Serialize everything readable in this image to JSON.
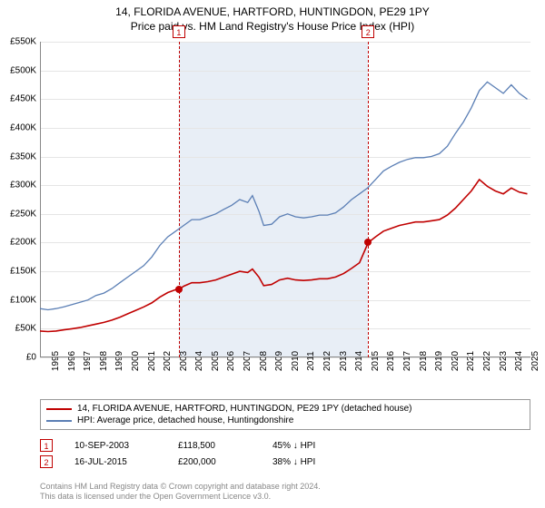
{
  "title": {
    "address": "14, FLORIDA AVENUE, HARTFORD, HUNTINGDON, PE29 1PY",
    "subtitle": "Price paid vs. HM Land Registry's House Price Index (HPI)"
  },
  "chart": {
    "type": "line",
    "background_color": "#ffffff",
    "highlight_color": "#e8eef6",
    "grid_color": "#e5e5e5",
    "axis_color": "#888888",
    "tick_fontsize": 10,
    "x": {
      "min": 1995,
      "max": 2025.7,
      "ticks": [
        1995,
        1996,
        1997,
        1998,
        1999,
        2000,
        2001,
        2002,
        2003,
        2004,
        2005,
        2006,
        2007,
        2008,
        2009,
        2010,
        2011,
        2012,
        2013,
        2014,
        2015,
        2016,
        2017,
        2018,
        2019,
        2020,
        2021,
        2022,
        2023,
        2024,
        2025
      ]
    },
    "y": {
      "min": 0,
      "max": 550000,
      "ticks": [
        0,
        50000,
        100000,
        150000,
        200000,
        250000,
        300000,
        350000,
        400000,
        450000,
        500000,
        550000
      ],
      "tick_labels": [
        "£0",
        "£50K",
        "£100K",
        "£150K",
        "£200K",
        "£250K",
        "£300K",
        "£350K",
        "£400K",
        "£450K",
        "£500K",
        "£550K"
      ]
    },
    "highlight_band": {
      "from": 2003.69,
      "to": 2015.54
    },
    "series": [
      {
        "id": "hpi",
        "label": "HPI: Average price, detached house, Huntingdonshire",
        "color": "#5b7fb5",
        "width": 1.3,
        "points": [
          [
            1995.0,
            85000
          ],
          [
            1995.5,
            83000
          ],
          [
            1996.0,
            85000
          ],
          [
            1996.5,
            88000
          ],
          [
            1997.0,
            92000
          ],
          [
            1997.5,
            96000
          ],
          [
            1998.0,
            100000
          ],
          [
            1998.5,
            108000
          ],
          [
            1999.0,
            112000
          ],
          [
            1999.5,
            120000
          ],
          [
            2000.0,
            130000
          ],
          [
            2000.5,
            140000
          ],
          [
            2001.0,
            150000
          ],
          [
            2001.5,
            160000
          ],
          [
            2002.0,
            175000
          ],
          [
            2002.5,
            195000
          ],
          [
            2003.0,
            210000
          ],
          [
            2003.5,
            220000
          ],
          [
            2004.0,
            230000
          ],
          [
            2004.5,
            240000
          ],
          [
            2005.0,
            240000
          ],
          [
            2005.5,
            245000
          ],
          [
            2006.0,
            250000
          ],
          [
            2006.5,
            258000
          ],
          [
            2007.0,
            265000
          ],
          [
            2007.5,
            275000
          ],
          [
            2008.0,
            270000
          ],
          [
            2008.3,
            282000
          ],
          [
            2008.7,
            255000
          ],
          [
            2009.0,
            230000
          ],
          [
            2009.5,
            232000
          ],
          [
            2010.0,
            245000
          ],
          [
            2010.5,
            250000
          ],
          [
            2011.0,
            245000
          ],
          [
            2011.5,
            243000
          ],
          [
            2012.0,
            245000
          ],
          [
            2012.5,
            248000
          ],
          [
            2013.0,
            248000
          ],
          [
            2013.5,
            252000
          ],
          [
            2014.0,
            262000
          ],
          [
            2014.5,
            275000
          ],
          [
            2015.0,
            285000
          ],
          [
            2015.5,
            295000
          ],
          [
            2016.0,
            310000
          ],
          [
            2016.5,
            325000
          ],
          [
            2017.0,
            333000
          ],
          [
            2017.5,
            340000
          ],
          [
            2018.0,
            345000
          ],
          [
            2018.5,
            348000
          ],
          [
            2019.0,
            348000
          ],
          [
            2019.5,
            350000
          ],
          [
            2020.0,
            355000
          ],
          [
            2020.5,
            368000
          ],
          [
            2021.0,
            390000
          ],
          [
            2021.5,
            410000
          ],
          [
            2022.0,
            435000
          ],
          [
            2022.5,
            465000
          ],
          [
            2023.0,
            480000
          ],
          [
            2023.5,
            470000
          ],
          [
            2024.0,
            460000
          ],
          [
            2024.5,
            475000
          ],
          [
            2025.0,
            460000
          ],
          [
            2025.5,
            450000
          ]
        ]
      },
      {
        "id": "property",
        "label": "14, FLORIDA AVENUE, HARTFORD, HUNTINGDON, PE29 1PY (detached house)",
        "color": "#c00000",
        "width": 1.6,
        "points": [
          [
            1995.0,
            46000
          ],
          [
            1995.5,
            45000
          ],
          [
            1996.0,
            46000
          ],
          [
            1996.5,
            48000
          ],
          [
            1997.0,
            50000
          ],
          [
            1997.5,
            52000
          ],
          [
            1998.0,
            55000
          ],
          [
            1998.5,
            58000
          ],
          [
            1999.0,
            61000
          ],
          [
            1999.5,
            65000
          ],
          [
            2000.0,
            70000
          ],
          [
            2000.5,
            76000
          ],
          [
            2001.0,
            82000
          ],
          [
            2001.5,
            88000
          ],
          [
            2002.0,
            95000
          ],
          [
            2002.5,
            105000
          ],
          [
            2003.0,
            113000
          ],
          [
            2003.5,
            118000
          ],
          [
            2003.69,
            118500
          ],
          [
            2004.0,
            124000
          ],
          [
            2004.5,
            130000
          ],
          [
            2005.0,
            130000
          ],
          [
            2005.5,
            132000
          ],
          [
            2006.0,
            135000
          ],
          [
            2006.5,
            140000
          ],
          [
            2007.0,
            145000
          ],
          [
            2007.5,
            150000
          ],
          [
            2008.0,
            148000
          ],
          [
            2008.3,
            154000
          ],
          [
            2008.7,
            140000
          ],
          [
            2009.0,
            125000
          ],
          [
            2009.5,
            127000
          ],
          [
            2010.0,
            135000
          ],
          [
            2010.5,
            138000
          ],
          [
            2011.0,
            135000
          ],
          [
            2011.5,
            134000
          ],
          [
            2012.0,
            135000
          ],
          [
            2012.5,
            137000
          ],
          [
            2013.0,
            137000
          ],
          [
            2013.5,
            140000
          ],
          [
            2014.0,
            146000
          ],
          [
            2014.5,
            155000
          ],
          [
            2015.0,
            165000
          ],
          [
            2015.54,
            200000
          ],
          [
            2016.0,
            210000
          ],
          [
            2016.5,
            220000
          ],
          [
            2017.0,
            225000
          ],
          [
            2017.5,
            230000
          ],
          [
            2018.0,
            233000
          ],
          [
            2018.5,
            236000
          ],
          [
            2019.0,
            236000
          ],
          [
            2019.5,
            238000
          ],
          [
            2020.0,
            240000
          ],
          [
            2020.5,
            248000
          ],
          [
            2021.0,
            260000
          ],
          [
            2021.5,
            275000
          ],
          [
            2022.0,
            290000
          ],
          [
            2022.5,
            310000
          ],
          [
            2023.0,
            298000
          ],
          [
            2023.5,
            290000
          ],
          [
            2024.0,
            285000
          ],
          [
            2024.5,
            295000
          ],
          [
            2025.0,
            288000
          ],
          [
            2025.5,
            285000
          ]
        ]
      }
    ],
    "sale_markers": [
      {
        "n": "1",
        "x": 2003.69,
        "y": 118500,
        "color": "#c00000"
      },
      {
        "n": "2",
        "x": 2015.54,
        "y": 200000,
        "color": "#c00000"
      }
    ]
  },
  "sales": [
    {
      "n": "1",
      "date": "10-SEP-2003",
      "price": "£118,500",
      "diff": "45% ↓ HPI"
    },
    {
      "n": "2",
      "date": "16-JUL-2015",
      "price": "£200,000",
      "diff": "38% ↓ HPI"
    }
  ],
  "footer": {
    "line1": "Contains HM Land Registry data © Crown copyright and database right 2024.",
    "line2": "This data is licensed under the Open Government Licence v3.0."
  }
}
